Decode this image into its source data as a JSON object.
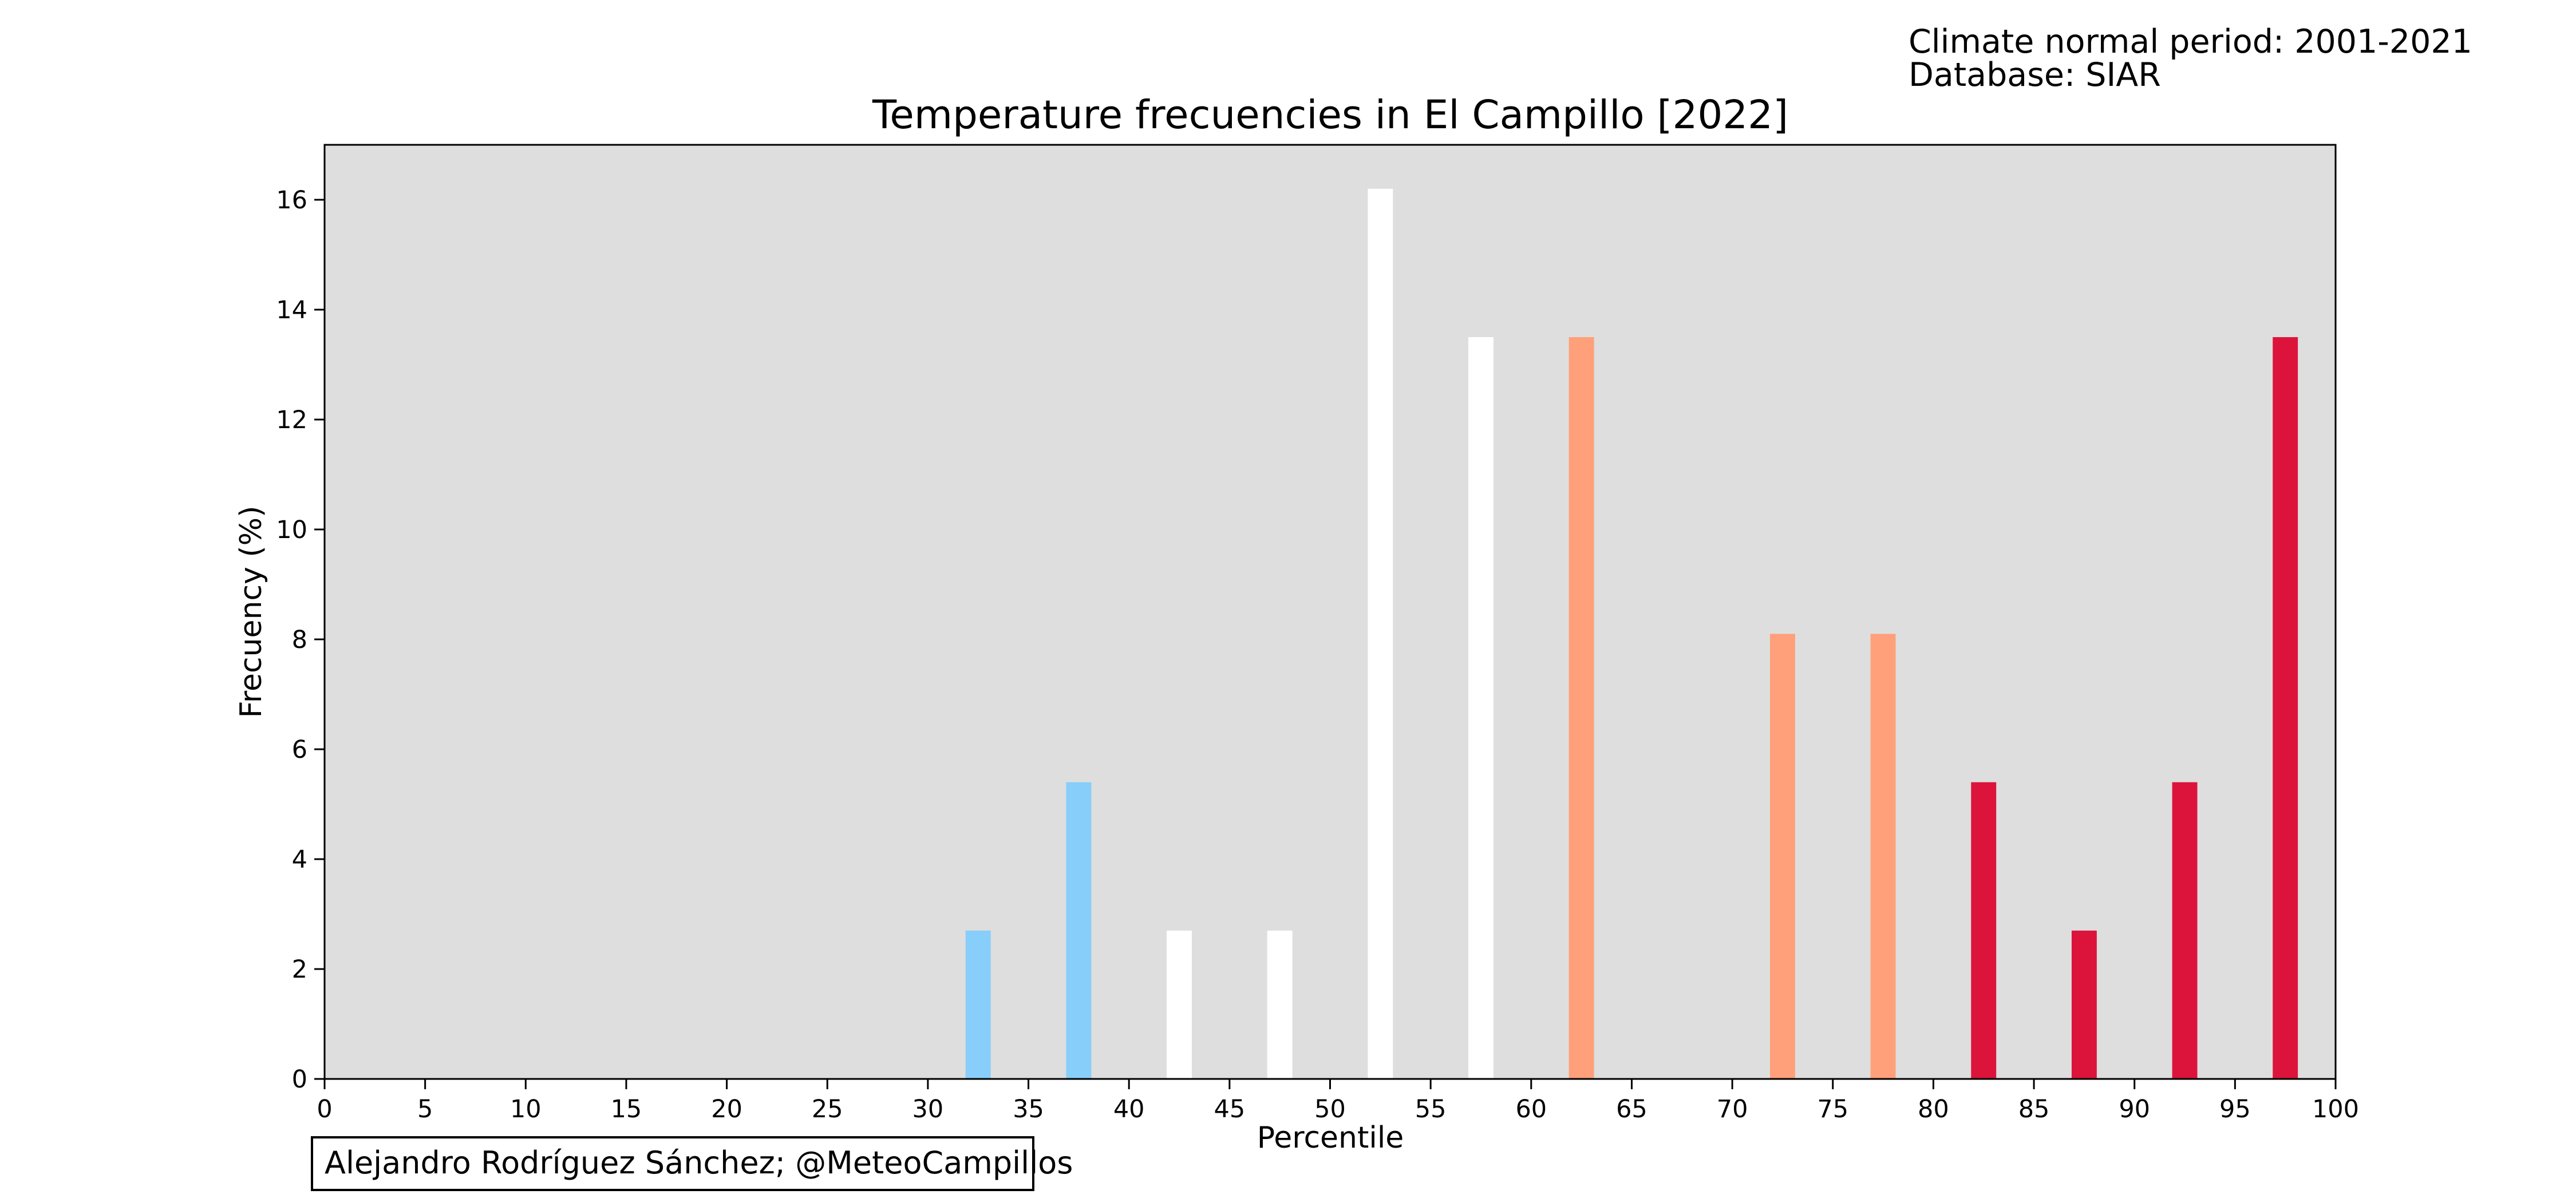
{
  "header": {
    "normal_period": "Climate normal period: 2001-2021",
    "database": "Database: SIAR"
  },
  "credit": "Alejandro Rodríguez Sánchez; @MeteoCampillos",
  "chart_data": {
    "type": "bar",
    "title": "Temperature frecuencies in El Campillo [2022]",
    "xlabel": "Percentile",
    "ylabel": "Frecuency (%)",
    "xlim": [
      0,
      100
    ],
    "ylim": [
      0,
      17
    ],
    "x_ticks": [
      0,
      5,
      10,
      15,
      20,
      25,
      30,
      35,
      40,
      45,
      50,
      55,
      60,
      65,
      70,
      75,
      80,
      85,
      90,
      95,
      100
    ],
    "y_ticks": [
      0,
      2,
      4,
      6,
      8,
      10,
      12,
      14,
      16
    ],
    "bar_width": 1.25,
    "background_color": "#dedede",
    "grid": false,
    "bars": [
      {
        "x": 32.5,
        "value": 2.7,
        "color": "#87cefa"
      },
      {
        "x": 37.5,
        "value": 5.4,
        "color": "#87cefa"
      },
      {
        "x": 42.5,
        "value": 2.7,
        "color": "#ffffff"
      },
      {
        "x": 47.5,
        "value": 2.7,
        "color": "#ffffff"
      },
      {
        "x": 52.5,
        "value": 16.2,
        "color": "#ffffff"
      },
      {
        "x": 57.5,
        "value": 13.5,
        "color": "#ffffff"
      },
      {
        "x": 62.5,
        "value": 13.5,
        "color": "#ffa07a"
      },
      {
        "x": 72.5,
        "value": 8.1,
        "color": "#ffa07a"
      },
      {
        "x": 77.5,
        "value": 8.1,
        "color": "#ffa07a"
      },
      {
        "x": 82.5,
        "value": 5.4,
        "color": "#dc143c"
      },
      {
        "x": 87.5,
        "value": 2.7,
        "color": "#dc143c"
      },
      {
        "x": 92.5,
        "value": 5.4,
        "color": "#dc143c"
      },
      {
        "x": 97.5,
        "value": 13.5,
        "color": "#dc143c"
      }
    ]
  }
}
